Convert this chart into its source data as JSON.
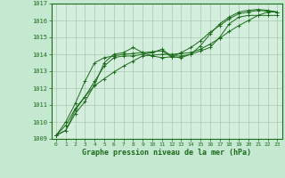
{
  "title": "Graphe pression niveau de la mer (hPa)",
  "background_color": "#c5e8d0",
  "plot_background": "#d4eedd",
  "grid_color": "#a8c8b0",
  "line_color": "#1a6b1a",
  "marker_color": "#1a6b1a",
  "xlim": [
    -0.5,
    23.5
  ],
  "ylim": [
    1009,
    1017
  ],
  "xticks": [
    0,
    1,
    2,
    3,
    4,
    5,
    6,
    7,
    8,
    9,
    10,
    11,
    12,
    13,
    14,
    15,
    16,
    17,
    18,
    19,
    20,
    21,
    22,
    23
  ],
  "yticks": [
    1009,
    1010,
    1011,
    1012,
    1013,
    1014,
    1015,
    1016,
    1017
  ],
  "series": [
    [
      1009.2,
      1009.5,
      1010.7,
      1011.5,
      1012.4,
      1013.3,
      1013.8,
      1013.9,
      1013.9,
      1014.0,
      1014.1,
      1014.3,
      1013.9,
      1013.9,
      1014.0,
      1014.2,
      1014.4,
      1015.0,
      1015.8,
      1016.2,
      1016.3,
      1016.3,
      1016.3,
      1016.3
    ],
    [
      1009.2,
      1009.5,
      1010.5,
      1011.2,
      1012.2,
      1013.5,
      1014.0,
      1014.1,
      1014.4,
      1014.1,
      1013.9,
      1013.8,
      1013.85,
      1014.1,
      1014.4,
      1014.8,
      1015.3,
      1015.7,
      1016.1,
      1016.4,
      1016.5,
      1016.6,
      1016.55,
      1016.5
    ],
    [
      1009.2,
      1010.0,
      1011.1,
      1012.4,
      1013.5,
      1013.8,
      1013.9,
      1014.0,
      1014.05,
      1014.1,
      1014.15,
      1014.2,
      1013.85,
      1013.8,
      1014.0,
      1014.5,
      1015.2,
      1015.8,
      1016.2,
      1016.5,
      1016.6,
      1016.65,
      1016.6,
      1016.5
    ],
    [
      1009.2,
      1009.8,
      1010.8,
      1011.5,
      1012.15,
      1012.55,
      1012.95,
      1013.3,
      1013.6,
      1013.9,
      1013.95,
      1014.0,
      1014.0,
      1014.05,
      1014.1,
      1014.3,
      1014.6,
      1014.95,
      1015.35,
      1015.7,
      1016.0,
      1016.3,
      1016.5,
      1016.5
    ]
  ]
}
